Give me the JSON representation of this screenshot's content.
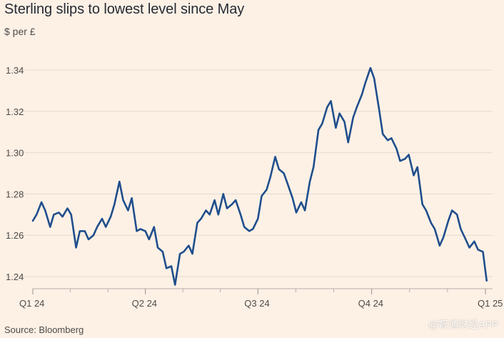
{
  "chart_data": {
    "type": "line",
    "title": "Sterling slips to lowest level since May",
    "ylabel": "$ per £",
    "xlabel": "",
    "ylim": [
      1.235,
      1.345
    ],
    "yticks": [
      1.24,
      1.26,
      1.28,
      1.3,
      1.32,
      1.34
    ],
    "ytick_labels": [
      "1.24",
      "1.26",
      "1.28",
      "1.30",
      "1.32",
      "1.34"
    ],
    "xticks": [
      {
        "label": "Q1 24",
        "date": "2024-01-01"
      },
      {
        "label": "Q2 24",
        "date": "2024-04-01"
      },
      {
        "label": "Q3 24",
        "date": "2024-07-01"
      },
      {
        "label": "Q4 24",
        "date": "2024-10-01"
      },
      {
        "label": "Q1 25",
        "date": "2025-01-01"
      }
    ],
    "grid": true,
    "series_color": "#1f4e8c",
    "series": [
      {
        "x": [
          "2024-01-01",
          "2024-01-04",
          "2024-01-08",
          "2024-01-11",
          "2024-01-15",
          "2024-01-18",
          "2024-01-22",
          "2024-01-25",
          "2024-01-29",
          "2024-02-01",
          "2024-02-05",
          "2024-02-08",
          "2024-02-12",
          "2024-02-15",
          "2024-02-19",
          "2024-02-22",
          "2024-02-26",
          "2024-02-29",
          "2024-03-04",
          "2024-03-07",
          "2024-03-11",
          "2024-03-14",
          "2024-03-18",
          "2024-03-21",
          "2024-03-25",
          "2024-03-28",
          "2024-04-01",
          "2024-04-04",
          "2024-04-08",
          "2024-04-11",
          "2024-04-15",
          "2024-04-18",
          "2024-04-22",
          "2024-04-25",
          "2024-04-29",
          "2024-05-02",
          "2024-05-06",
          "2024-05-09",
          "2024-05-13",
          "2024-05-16",
          "2024-05-20",
          "2024-05-23",
          "2024-05-27",
          "2024-05-30",
          "2024-06-03",
          "2024-06-06",
          "2024-06-10",
          "2024-06-13",
          "2024-06-17",
          "2024-06-20",
          "2024-06-24",
          "2024-06-27",
          "2024-07-01",
          "2024-07-04",
          "2024-07-08",
          "2024-07-11",
          "2024-07-15",
          "2024-07-18",
          "2024-07-22",
          "2024-07-25",
          "2024-07-29",
          "2024-08-01",
          "2024-08-05",
          "2024-08-08",
          "2024-08-12",
          "2024-08-15",
          "2024-08-19",
          "2024-08-22",
          "2024-08-26",
          "2024-08-29",
          "2024-09-02",
          "2024-09-05",
          "2024-09-09",
          "2024-09-12",
          "2024-09-16",
          "2024-09-19",
          "2024-09-23",
          "2024-09-26",
          "2024-09-30",
          "2024-10-03",
          "2024-10-07",
          "2024-10-10",
          "2024-10-14",
          "2024-10-17",
          "2024-10-21",
          "2024-10-24",
          "2024-10-28",
          "2024-10-31",
          "2024-11-04",
          "2024-11-07",
          "2024-11-11",
          "2024-11-14",
          "2024-11-18",
          "2024-11-21",
          "2024-11-25",
          "2024-11-28",
          "2024-12-02",
          "2024-12-05",
          "2024-12-09",
          "2024-12-12",
          "2024-12-16",
          "2024-12-19",
          "2024-12-23",
          "2024-12-26",
          "2024-12-30",
          "2025-01-02"
        ],
        "values": [
          1.267,
          1.27,
          1.276,
          1.272,
          1.264,
          1.27,
          1.271,
          1.269,
          1.273,
          1.27,
          1.254,
          1.262,
          1.262,
          1.258,
          1.26,
          1.264,
          1.268,
          1.264,
          1.269,
          1.275,
          1.286,
          1.277,
          1.272,
          1.278,
          1.262,
          1.263,
          1.262,
          1.258,
          1.264,
          1.254,
          1.252,
          1.244,
          1.245,
          1.236,
          1.251,
          1.252,
          1.255,
          1.251,
          1.266,
          1.268,
          1.272,
          1.27,
          1.277,
          1.27,
          1.28,
          1.273,
          1.275,
          1.277,
          1.27,
          1.264,
          1.262,
          1.263,
          1.268,
          1.279,
          1.282,
          1.288,
          1.298,
          1.292,
          1.29,
          1.285,
          1.278,
          1.271,
          1.276,
          1.272,
          1.286,
          1.293,
          1.311,
          1.314,
          1.322,
          1.325,
          1.312,
          1.319,
          1.315,
          1.305,
          1.317,
          1.322,
          1.328,
          1.334,
          1.341,
          1.336,
          1.321,
          1.309,
          1.306,
          1.307,
          1.302,
          1.296,
          1.297,
          1.299,
          1.289,
          1.293,
          1.275,
          1.272,
          1.266,
          1.263,
          1.255,
          1.259,
          1.267,
          1.272,
          1.27,
          1.263,
          1.258,
          1.254,
          1.257,
          1.253,
          1.252,
          1.238
        ]
      }
    ]
  },
  "footer": {
    "source": "Source: Bloomberg",
    "watermark": "@智通财经APP"
  }
}
